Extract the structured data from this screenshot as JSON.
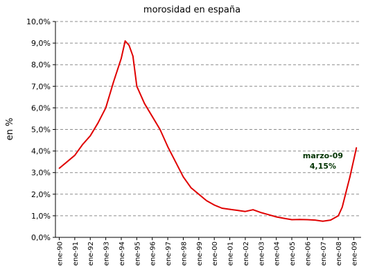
{
  "chart_data": {
    "type": "line",
    "title": "morosidad en españa",
    "xlabel": "",
    "ylabel": "en %",
    "ylim": [
      0,
      10
    ],
    "y_ticks": [
      "0,0%",
      "1,0%",
      "2,0%",
      "3,0%",
      "4,0%",
      "5,0%",
      "6,0%",
      "7,0%",
      "8,0%",
      "9,0%",
      "10,0%"
    ],
    "x_tick_labels": [
      "ene-90",
      "ene-91",
      "ene-92",
      "ene-93",
      "ene-94",
      "ene-95",
      "ene-96",
      "ene-97",
      "ene-98",
      "ene-99",
      "ene-00",
      "ene-01",
      "ene-02",
      "ene-03",
      "ene-04",
      "ene-05",
      "ene-06",
      "ene-07",
      "ene-08",
      "ene-09"
    ],
    "grid": "horizontal dashed",
    "legend": "none",
    "series": [
      {
        "color": "#e00000",
        "x": [
          "1990-01",
          "1990-07",
          "1991-01",
          "1991-07",
          "1992-01",
          "1992-07",
          "1993-01",
          "1993-07",
          "1994-01",
          "1994-04",
          "1994-07",
          "1994-10",
          "1995-01",
          "1995-07",
          "1996-01",
          "1996-07",
          "1997-01",
          "1997-07",
          "1998-01",
          "1998-07",
          "1999-01",
          "1999-07",
          "2000-01",
          "2000-07",
          "2001-01",
          "2001-07",
          "2002-01",
          "2002-07",
          "2003-01",
          "2003-07",
          "2004-01",
          "2004-07",
          "2005-01",
          "2005-07",
          "2006-01",
          "2006-07",
          "2007-01",
          "2007-07",
          "2008-01",
          "2008-04",
          "2008-07",
          "2008-10",
          "2009-01",
          "2009-03"
        ],
        "values": [
          3.2,
          3.5,
          3.8,
          4.3,
          4.7,
          5.3,
          6.0,
          7.2,
          8.3,
          9.1,
          8.9,
          8.4,
          7.0,
          6.2,
          5.6,
          5.0,
          4.2,
          3.5,
          2.8,
          2.3,
          2.0,
          1.7,
          1.5,
          1.35,
          1.3,
          1.25,
          1.2,
          1.28,
          1.15,
          1.05,
          0.95,
          0.88,
          0.82,
          0.83,
          0.82,
          0.8,
          0.75,
          0.8,
          1.0,
          1.4,
          2.1,
          2.8,
          3.6,
          4.15
        ]
      }
    ],
    "annotations": [
      {
        "label": "marzo-09",
        "value_label": "4,15%",
        "color": "#003300"
      }
    ]
  }
}
